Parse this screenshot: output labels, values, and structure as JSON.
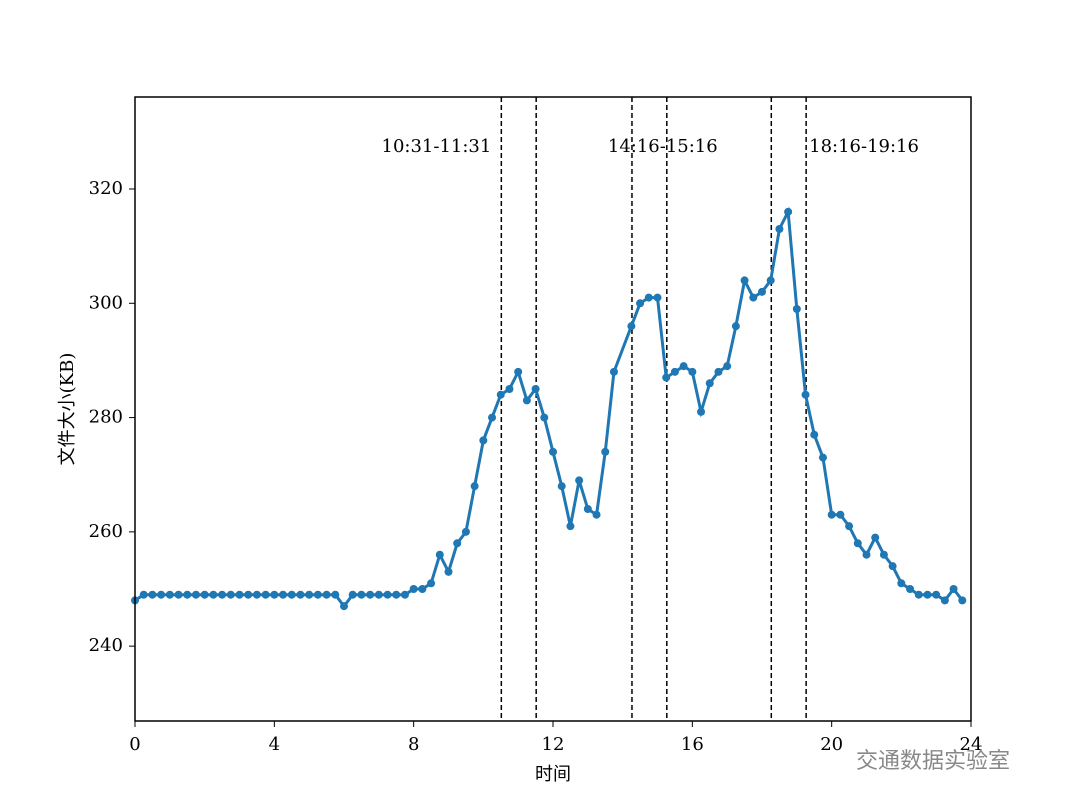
{
  "chart_data": {
    "type": "line",
    "xlabel": "时间",
    "ylabel": "文件大小(KB)",
    "x": [
      0,
      0.25,
      0.5,
      0.75,
      1,
      1.25,
      1.5,
      1.75,
      2,
      2.25,
      2.5,
      2.75,
      3,
      3.25,
      3.5,
      3.75,
      4,
      4.25,
      4.5,
      4.75,
      5,
      5.25,
      5.5,
      5.75,
      6,
      6.25,
      6.5,
      6.75,
      7,
      7.25,
      7.5,
      7.75,
      8,
      8.25,
      8.5,
      8.75,
      9,
      9.25,
      9.5,
      9.75,
      10,
      10.25,
      10.5,
      10.75,
      11,
      11.25,
      11.5,
      11.75,
      12,
      12.25,
      12.5,
      12.75,
      13,
      13.25,
      13.5,
      13.75,
      14.25,
      14.5,
      14.75,
      15,
      15.25,
      15.5,
      15.75,
      16,
      16.25,
      16.5,
      16.75,
      17,
      17.25,
      17.5,
      17.75,
      18,
      18.25,
      18.5,
      18.75,
      19,
      19.25,
      19.5,
      19.75,
      20,
      20.25,
      20.5,
      20.75,
      21,
      21.25,
      21.5,
      21.75,
      22,
      22.25,
      22.5,
      22.75,
      23,
      23.25,
      23.5,
      23.75
    ],
    "series": [
      {
        "color": "#1f77b4",
        "values": [
          248,
          249,
          249,
          249,
          249,
          249,
          249,
          249,
          249,
          249,
          249,
          249,
          249,
          249,
          249,
          249,
          249,
          249,
          249,
          249,
          249,
          249,
          249,
          249,
          247,
          249,
          249,
          249,
          249,
          249,
          249,
          249,
          250,
          250,
          251,
          256,
          253,
          258,
          260,
          268,
          276,
          280,
          284,
          285,
          288,
          283,
          285,
          280,
          274,
          268,
          261,
          269,
          264,
          263,
          274,
          288,
          296,
          300,
          301,
          301,
          287,
          288,
          289,
          288,
          281,
          286,
          288,
          289,
          296,
          304,
          301,
          302,
          304,
          313,
          316,
          299,
          284,
          277,
          273,
          263,
          263,
          261,
          258,
          256,
          259,
          256,
          254,
          251,
          250,
          249,
          249,
          249,
          248,
          250,
          248
        ]
      }
    ],
    "vlines": [
      10.517,
      11.517,
      14.267,
      15.267,
      18.267,
      19.267
    ],
    "annotations": [
      "10:31-11:31",
      "14:16-15:16",
      "18:16-19:16"
    ],
    "xlim": [
      0,
      24
    ],
    "xticks": [
      0,
      4,
      8,
      12,
      16,
      20,
      24
    ],
    "ylim": [
      226.9,
      336.1
    ],
    "yticks": [
      240,
      260,
      280,
      300,
      320
    ],
    "watermark": "交通数据实验室"
  }
}
